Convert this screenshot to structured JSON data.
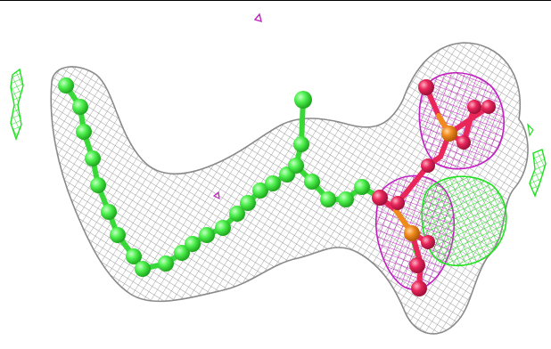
{
  "image": {
    "subject": "ligand-in-electron-density-map",
    "colors": {
      "background": "#ffffff",
      "frame_line": "#000000",
      "mesh_2fofc": "#9a9a9a",
      "mesh_fofc_negative": "#c020c0",
      "mesh_fofc_positive": "#20e020",
      "carbon_atoms": "#4ef04e",
      "oxygen_atoms": "#e8265a",
      "phosphorus_atoms": "#f08a1e"
    }
  }
}
